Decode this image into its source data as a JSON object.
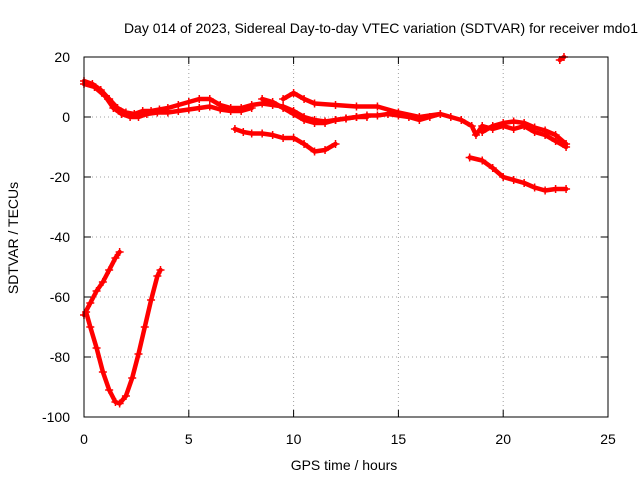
{
  "chart_data": {
    "type": "scatter",
    "title": "Day 014 of 2023, Sidereal Day-to-day VTEC variation (SDTVAR) for receiver mdo1",
    "xlabel": "GPS time / hours",
    "ylabel": "SDTVAR / TECUs",
    "xlim": [
      0,
      25
    ],
    "ylim": [
      -100,
      20
    ],
    "xticks": [
      0,
      5,
      10,
      15,
      20,
      25
    ],
    "yticks": [
      -100,
      -80,
      -60,
      -40,
      -20,
      0,
      20
    ],
    "xtick_labels": [
      "0",
      "5",
      "10",
      "15",
      "20",
      "25"
    ],
    "ytick_labels": [
      "-100",
      "-80",
      "-60",
      "-40",
      "-20",
      "0",
      "20"
    ],
    "grid": true,
    "color": "#ff0000",
    "series": [
      {
        "name": "arc-main",
        "points": [
          [
            0,
            12
          ],
          [
            0.4,
            11
          ],
          [
            0.8,
            9
          ],
          [
            1.2,
            6
          ],
          [
            1.6,
            3
          ],
          [
            2.0,
            1.5
          ],
          [
            2.4,
            1
          ],
          [
            2.8,
            2
          ],
          [
            3.2,
            2
          ],
          [
            3.6,
            2.5
          ],
          [
            4.0,
            3
          ],
          [
            4.5,
            4
          ],
          [
            5.0,
            5
          ],
          [
            5.5,
            6
          ],
          [
            6.0,
            6
          ],
          [
            6.5,
            4
          ],
          [
            7.0,
            3
          ],
          [
            7.5,
            3
          ],
          [
            8.0,
            4
          ],
          [
            8.5,
            4.5
          ],
          [
            9.0,
            4
          ],
          [
            9.5,
            3.5
          ],
          [
            10.0,
            2
          ],
          [
            10.5,
            0
          ],
          [
            11.0,
            -1
          ],
          [
            11.5,
            -1.5
          ],
          [
            12.0,
            -1
          ],
          [
            12.5,
            -0.5
          ],
          [
            13.0,
            0
          ],
          [
            13.5,
            0.5
          ],
          [
            14.0,
            0.5
          ],
          [
            14.5,
            1
          ],
          [
            15.0,
            0.5
          ],
          [
            15.5,
            0
          ],
          [
            16.0,
            -1
          ],
          [
            16.5,
            0
          ],
          [
            17.0,
            1
          ],
          [
            17.5,
            0
          ],
          [
            18.0,
            -1
          ],
          [
            18.5,
            -3
          ],
          [
            18.7,
            -6
          ],
          [
            19.0,
            -3
          ],
          [
            19.5,
            -4
          ],
          [
            20.0,
            -3
          ],
          [
            20.5,
            -4
          ],
          [
            21.0,
            -3
          ],
          [
            21.5,
            -5
          ],
          [
            22.0,
            -6
          ],
          [
            22.5,
            -8
          ],
          [
            23.0,
            -10
          ]
        ]
      },
      {
        "name": "arc-start",
        "points": [
          [
            0,
            11
          ],
          [
            0.5,
            10
          ],
          [
            1.0,
            7
          ],
          [
            1.4,
            3
          ],
          [
            1.8,
            1
          ],
          [
            2.2,
            0
          ],
          [
            2.6,
            0
          ],
          [
            3.0,
            1
          ],
          [
            3.5,
            1.5
          ],
          [
            4.0,
            1.5
          ],
          [
            4.5,
            2
          ],
          [
            5.0,
            2.5
          ],
          [
            5.5,
            3
          ],
          [
            6.0,
            3.5
          ],
          [
            6.5,
            2.5
          ],
          [
            7.0,
            2
          ],
          [
            7.5,
            2
          ],
          [
            8.0,
            3
          ]
        ]
      },
      {
        "name": "arc-mid-upper",
        "points": [
          [
            9.5,
            6
          ],
          [
            10.0,
            8
          ],
          [
            10.5,
            6
          ],
          [
            11.0,
            4.5
          ],
          [
            12.0,
            4
          ],
          [
            13.0,
            3.5
          ],
          [
            14.0,
            3.5
          ],
          [
            15.0,
            1.5
          ],
          [
            16.0,
            0
          ],
          [
            17.0,
            1
          ]
        ]
      },
      {
        "name": "arc-mid-lower",
        "points": [
          [
            8.5,
            6
          ],
          [
            9.0,
            5
          ],
          [
            9.5,
            3
          ],
          [
            10.0,
            1
          ],
          [
            10.5,
            -1
          ],
          [
            11.0,
            -2
          ],
          [
            11.5,
            -2
          ],
          [
            12.0,
            -1
          ],
          [
            12.5,
            -0.5
          ],
          [
            13.0,
            0
          ],
          [
            13.5,
            0
          ]
        ]
      },
      {
        "name": "arc-descending",
        "points": [
          [
            7.2,
            -4
          ],
          [
            7.6,
            -5
          ],
          [
            8.0,
            -5.5
          ],
          [
            8.5,
            -5.5
          ],
          [
            9.0,
            -6
          ],
          [
            9.5,
            -7
          ],
          [
            10.0,
            -7
          ],
          [
            10.5,
            -9
          ],
          [
            11.0,
            -11.5
          ],
          [
            11.5,
            -11
          ],
          [
            12.0,
            -9
          ]
        ]
      },
      {
        "name": "arc-late-low",
        "points": [
          [
            18.4,
            -13.5
          ],
          [
            19.0,
            -14.5
          ],
          [
            19.5,
            -17
          ],
          [
            20.0,
            -20
          ],
          [
            20.5,
            -21
          ],
          [
            21.0,
            -22
          ],
          [
            21.5,
            -23.5
          ],
          [
            22.0,
            -24.5
          ],
          [
            22.5,
            -24
          ],
          [
            23.0,
            -24
          ]
        ]
      },
      {
        "name": "arc-late-tail",
        "points": [
          [
            19.0,
            -5
          ],
          [
            19.5,
            -3
          ],
          [
            20.0,
            -2
          ],
          [
            20.5,
            -1.5
          ],
          [
            21.0,
            -2
          ],
          [
            21.5,
            -3.5
          ],
          [
            22.0,
            -4.5
          ],
          [
            22.5,
            -6
          ],
          [
            23.0,
            -9
          ]
        ]
      },
      {
        "name": "arc-top-point",
        "points": [
          [
            22.7,
            19
          ],
          [
            22.9,
            20
          ]
        ]
      },
      {
        "name": "arc-low-upper",
        "points": [
          [
            0,
            -66
          ],
          [
            0.3,
            -62
          ],
          [
            0.6,
            -58
          ],
          [
            0.9,
            -55
          ],
          [
            1.2,
            -51
          ],
          [
            1.5,
            -47
          ],
          [
            1.7,
            -45
          ]
        ]
      },
      {
        "name": "arc-low-v",
        "points": [
          [
            0.1,
            -65
          ],
          [
            0.3,
            -70
          ],
          [
            0.6,
            -77
          ],
          [
            0.9,
            -85
          ],
          [
            1.2,
            -91
          ],
          [
            1.5,
            -95
          ],
          [
            1.7,
            -95.5
          ],
          [
            2.0,
            -93
          ],
          [
            2.3,
            -87
          ],
          [
            2.6,
            -79
          ],
          [
            2.9,
            -70
          ],
          [
            3.2,
            -61
          ],
          [
            3.5,
            -53
          ],
          [
            3.65,
            -51
          ]
        ]
      }
    ]
  }
}
